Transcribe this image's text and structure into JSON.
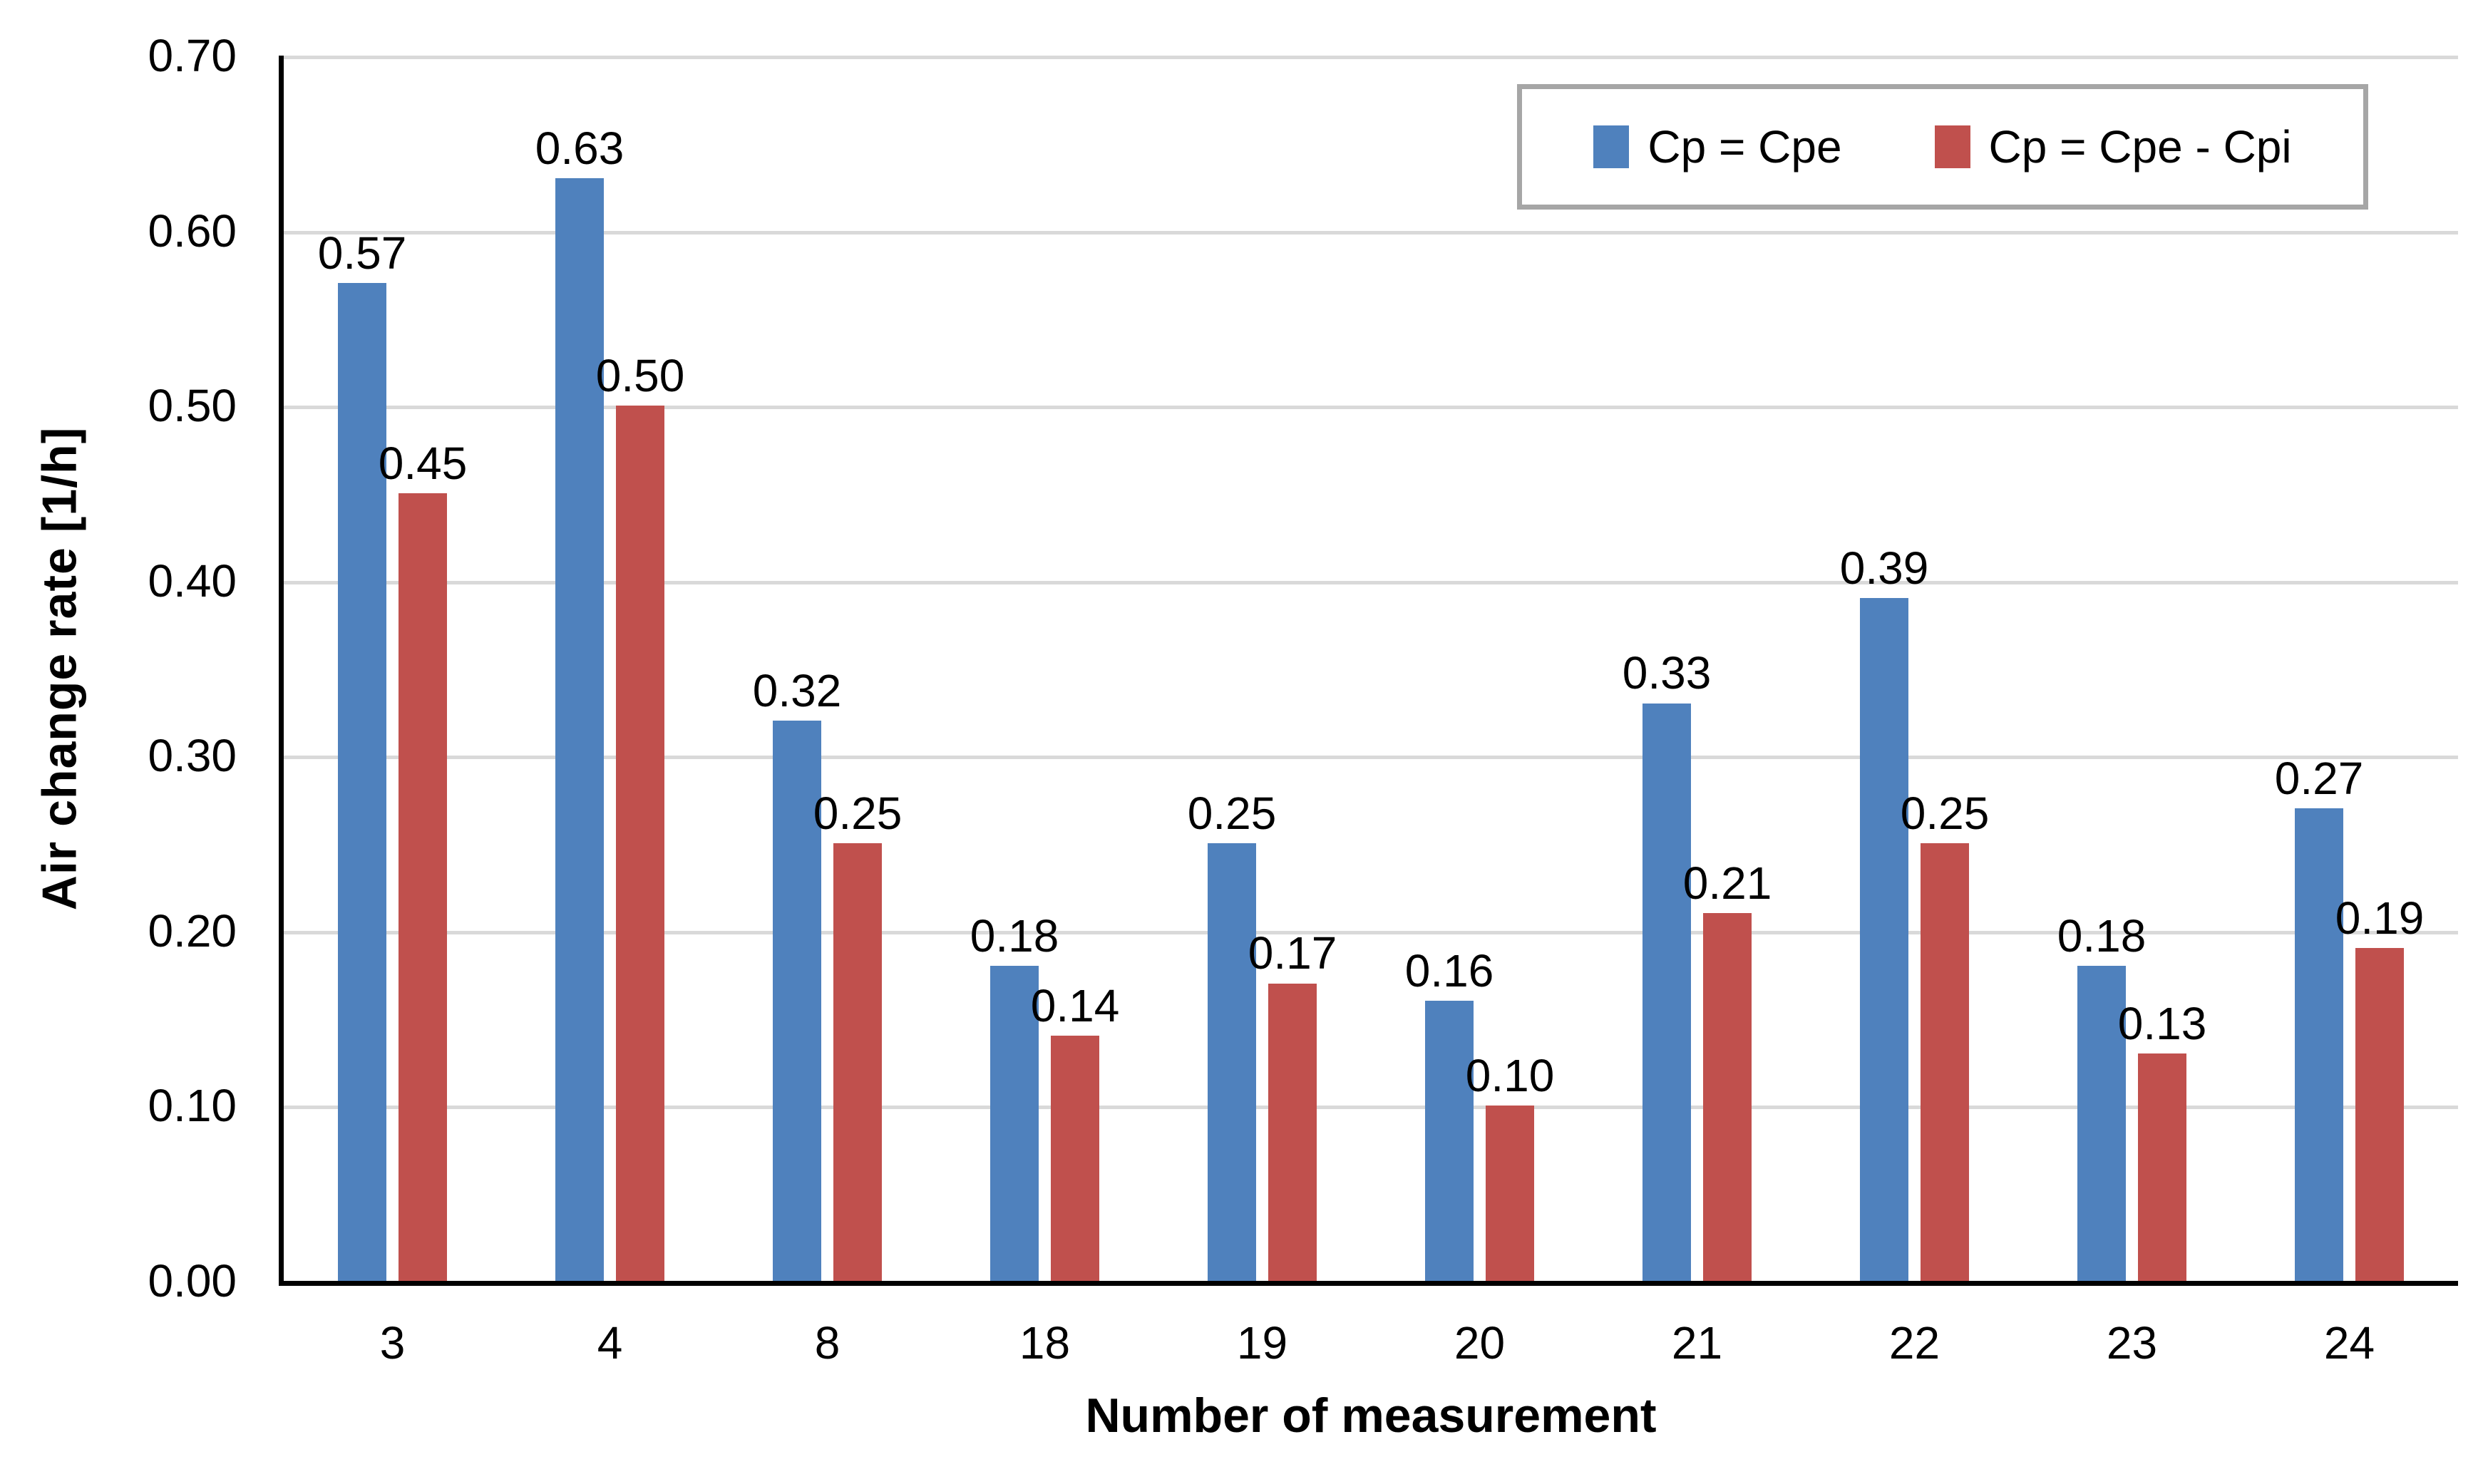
{
  "chart_data": {
    "type": "bar",
    "title": "",
    "xlabel": "Number of measurement",
    "ylabel": "Air change rate  [1/h]",
    "categories": [
      "3",
      "4",
      "8",
      "18",
      "19",
      "20",
      "21",
      "22",
      "23",
      "24"
    ],
    "series": [
      {
        "name": "Cp = Cpe",
        "color": "#4F81BD",
        "values": [
          0.57,
          0.63,
          0.32,
          0.18,
          0.25,
          0.16,
          0.33,
          0.39,
          0.18,
          0.27
        ]
      },
      {
        "name": "Cp = Cpe - Cpi",
        "color": "#C0504D",
        "values": [
          0.45,
          0.5,
          0.25,
          0.14,
          0.17,
          0.1,
          0.21,
          0.25,
          0.13,
          0.19
        ]
      }
    ],
    "ylim": [
      0.0,
      0.7
    ],
    "y_tick_step": 0.1,
    "y_ticks": [
      "0.00",
      "0.10",
      "0.20",
      "0.30",
      "0.40",
      "0.50",
      "0.60",
      "0.70"
    ],
    "y_tick_format": "two-decimals",
    "data_labels": true,
    "grid": "horizontal",
    "legend_position": "top-right"
  },
  "colors": {
    "background": "#FFFFFF",
    "axis_line": "#000000",
    "gridline": "#D9D9D9",
    "legend_border": "#A6A6A6",
    "text": "#000000",
    "series_blue": "#4F81BD",
    "series_red": "#C0504D"
  }
}
